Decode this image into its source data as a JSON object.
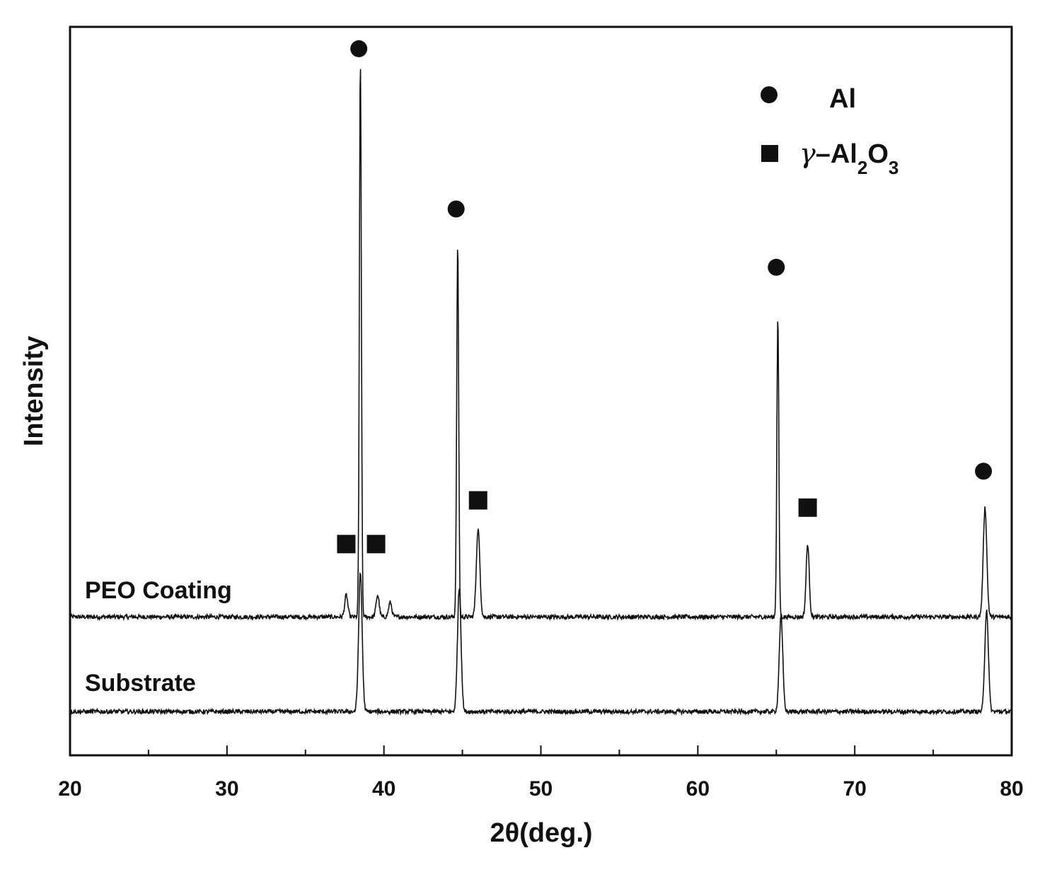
{
  "chart_data": {
    "type": "line",
    "xlabel": "2θ(deg.)",
    "ylabel": "Intensity",
    "xlim": [
      20,
      80
    ],
    "xticks": [
      "20",
      "30",
      "40",
      "50",
      "60",
      "70",
      "80"
    ],
    "y_tick_labels": false,
    "grid": false,
    "legend_placement": "top-right",
    "legend": [
      {
        "marker": "circle",
        "label": "Al"
      },
      {
        "marker": "square",
        "label_parts": [
          "γ",
          "–Al",
          "2",
          "O",
          "3"
        ]
      }
    ],
    "series": [
      {
        "name": "PEO Coating",
        "baseline": 0.19,
        "peaks": [
          {
            "x": 37.6,
            "height": 0.03,
            "phase": "γ-Al2O3"
          },
          {
            "x": 38.5,
            "height": 0.76,
            "phase": "Al"
          },
          {
            "x": 39.6,
            "height": 0.03,
            "phase": "γ-Al2O3"
          },
          {
            "x": 40.4,
            "height": 0.02,
            "phase": "γ-Al2O3"
          },
          {
            "x": 44.7,
            "height": 0.51,
            "phase": "Al"
          },
          {
            "x": 46.0,
            "height": 0.12,
            "phase": "γ-Al2O3"
          },
          {
            "x": 65.1,
            "height": 0.41,
            "phase": "Al"
          },
          {
            "x": 67.0,
            "height": 0.1,
            "phase": "γ-Al2O3"
          },
          {
            "x": 78.3,
            "height": 0.15,
            "phase": "Al"
          }
        ]
      },
      {
        "name": "Substrate",
        "baseline": 0.06,
        "peaks": [
          {
            "x": 38.5,
            "height": 0.19,
            "phase": "Al"
          },
          {
            "x": 44.8,
            "height": 0.17,
            "phase": "Al"
          },
          {
            "x": 65.3,
            "height": 0.13,
            "phase": "Al"
          },
          {
            "x": 78.4,
            "height": 0.14,
            "phase": "Al"
          }
        ]
      }
    ],
    "annotations": [
      {
        "marker": "circle",
        "x": 38.4,
        "y": 0.97
      },
      {
        "marker": "circle",
        "x": 44.6,
        "y": 0.75
      },
      {
        "marker": "circle",
        "x": 65.0,
        "y": 0.67
      },
      {
        "marker": "circle",
        "x": 78.2,
        "y": 0.39
      },
      {
        "marker": "square",
        "x": 37.6,
        "y": 0.29
      },
      {
        "marker": "square",
        "x": 39.5,
        "y": 0.29
      },
      {
        "marker": "square",
        "x": 46.0,
        "y": 0.35
      },
      {
        "marker": "square",
        "x": 67.0,
        "y": 0.34
      }
    ]
  }
}
